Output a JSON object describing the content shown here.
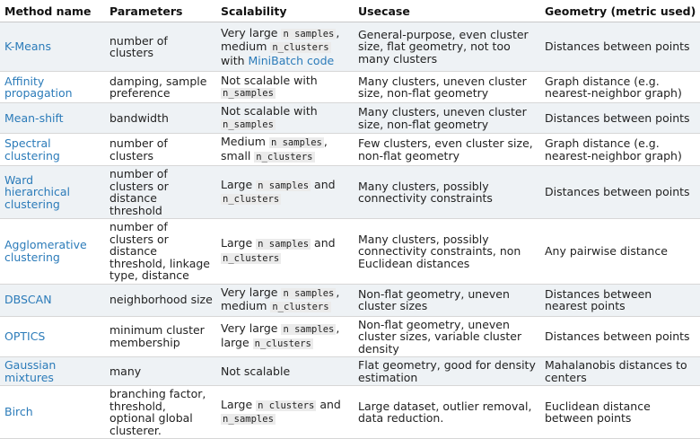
{
  "headers": [
    "Method name",
    "Parameters",
    "Scalability",
    "Usecase",
    "Geometry (metric used)"
  ],
  "rows": [
    {
      "method": "K-Means",
      "params": "number of clusters",
      "scal": [
        [
          "t",
          "Very large "
        ],
        [
          "c",
          "n samples"
        ],
        [
          "t",
          ", medium "
        ],
        [
          "c",
          "n_clusters"
        ],
        [
          "t",
          " with "
        ],
        [
          "l",
          "MiniBatch code"
        ]
      ],
      "usecase": "General-purpose, even cluster size, flat geometry, not too many clusters",
      "geometry": "Distances between points"
    },
    {
      "method": "Affinity propagation",
      "params": "damping, sample preference",
      "scal": [
        [
          "t",
          "Not scalable with "
        ],
        [
          "c",
          "n_samples"
        ]
      ],
      "usecase": "Many clusters, uneven cluster size, non-flat geometry",
      "geometry": "Graph distance (e.g. nearest-neighbor graph)"
    },
    {
      "method": "Mean-shift",
      "params": "bandwidth",
      "scal": [
        [
          "t",
          "Not scalable with "
        ],
        [
          "c",
          "n_samples"
        ]
      ],
      "usecase": "Many clusters, uneven cluster size, non-flat geometry",
      "geometry": "Distances between points"
    },
    {
      "method": "Spectral clustering",
      "params": "number of clusters",
      "scal": [
        [
          "t",
          "Medium "
        ],
        [
          "c",
          "n samples"
        ],
        [
          "t",
          ", small "
        ],
        [
          "c",
          "n_clusters"
        ]
      ],
      "usecase": "Few clusters, even cluster size, non-flat geometry",
      "geometry": "Graph distance (e.g. nearest-neighbor graph)"
    },
    {
      "method": "Ward hierarchical clustering",
      "params": "number of clusters or distance threshold",
      "scal": [
        [
          "t",
          "Large "
        ],
        [
          "c",
          "n samples"
        ],
        [
          "t",
          " and "
        ],
        [
          "c",
          "n_clusters"
        ]
      ],
      "usecase": "Many clusters, possibly connectivity constraints",
      "geometry": "Distances between points"
    },
    {
      "method": "Agglomerative clustering",
      "params": "number of clusters or distance threshold, linkage type, distance",
      "scal": [
        [
          "t",
          "Large "
        ],
        [
          "c",
          "n samples"
        ],
        [
          "t",
          " and "
        ],
        [
          "c",
          "n_clusters"
        ]
      ],
      "usecase": "Many clusters, possibly connectivity constraints, non Euclidean distances",
      "geometry": "Any pairwise distance"
    },
    {
      "method": "DBSCAN",
      "params": "neighborhood size",
      "scal": [
        [
          "t",
          "Very large "
        ],
        [
          "c",
          "n samples"
        ],
        [
          "t",
          ", medium "
        ],
        [
          "c",
          "n_clusters"
        ]
      ],
      "usecase": "Non-flat geometry, uneven cluster sizes",
      "geometry": "Distances between nearest points"
    },
    {
      "method": "OPTICS",
      "params": "minimum cluster membership",
      "scal": [
        [
          "t",
          "Very large "
        ],
        [
          "c",
          "n samples"
        ],
        [
          "t",
          ", large "
        ],
        [
          "c",
          "n_clusters"
        ]
      ],
      "usecase": "Non-flat geometry, uneven cluster sizes, variable cluster density",
      "geometry": "Distances between points"
    },
    {
      "method": "Gaussian mixtures",
      "params": "many",
      "scal": [
        [
          "t",
          "Not scalable"
        ]
      ],
      "usecase": "Flat geometry, good for density estimation",
      "geometry": "Mahalanobis distances to centers"
    },
    {
      "method": "Birch",
      "params": "branching factor, threshold, optional global clusterer.",
      "scal": [
        [
          "t",
          "Large "
        ],
        [
          "c",
          "n clusters"
        ],
        [
          "t",
          " and "
        ],
        [
          "c",
          "n_samples"
        ]
      ],
      "usecase": "Large dataset, outlier removal, data reduction.",
      "geometry": "Euclidean distance between points"
    }
  ]
}
